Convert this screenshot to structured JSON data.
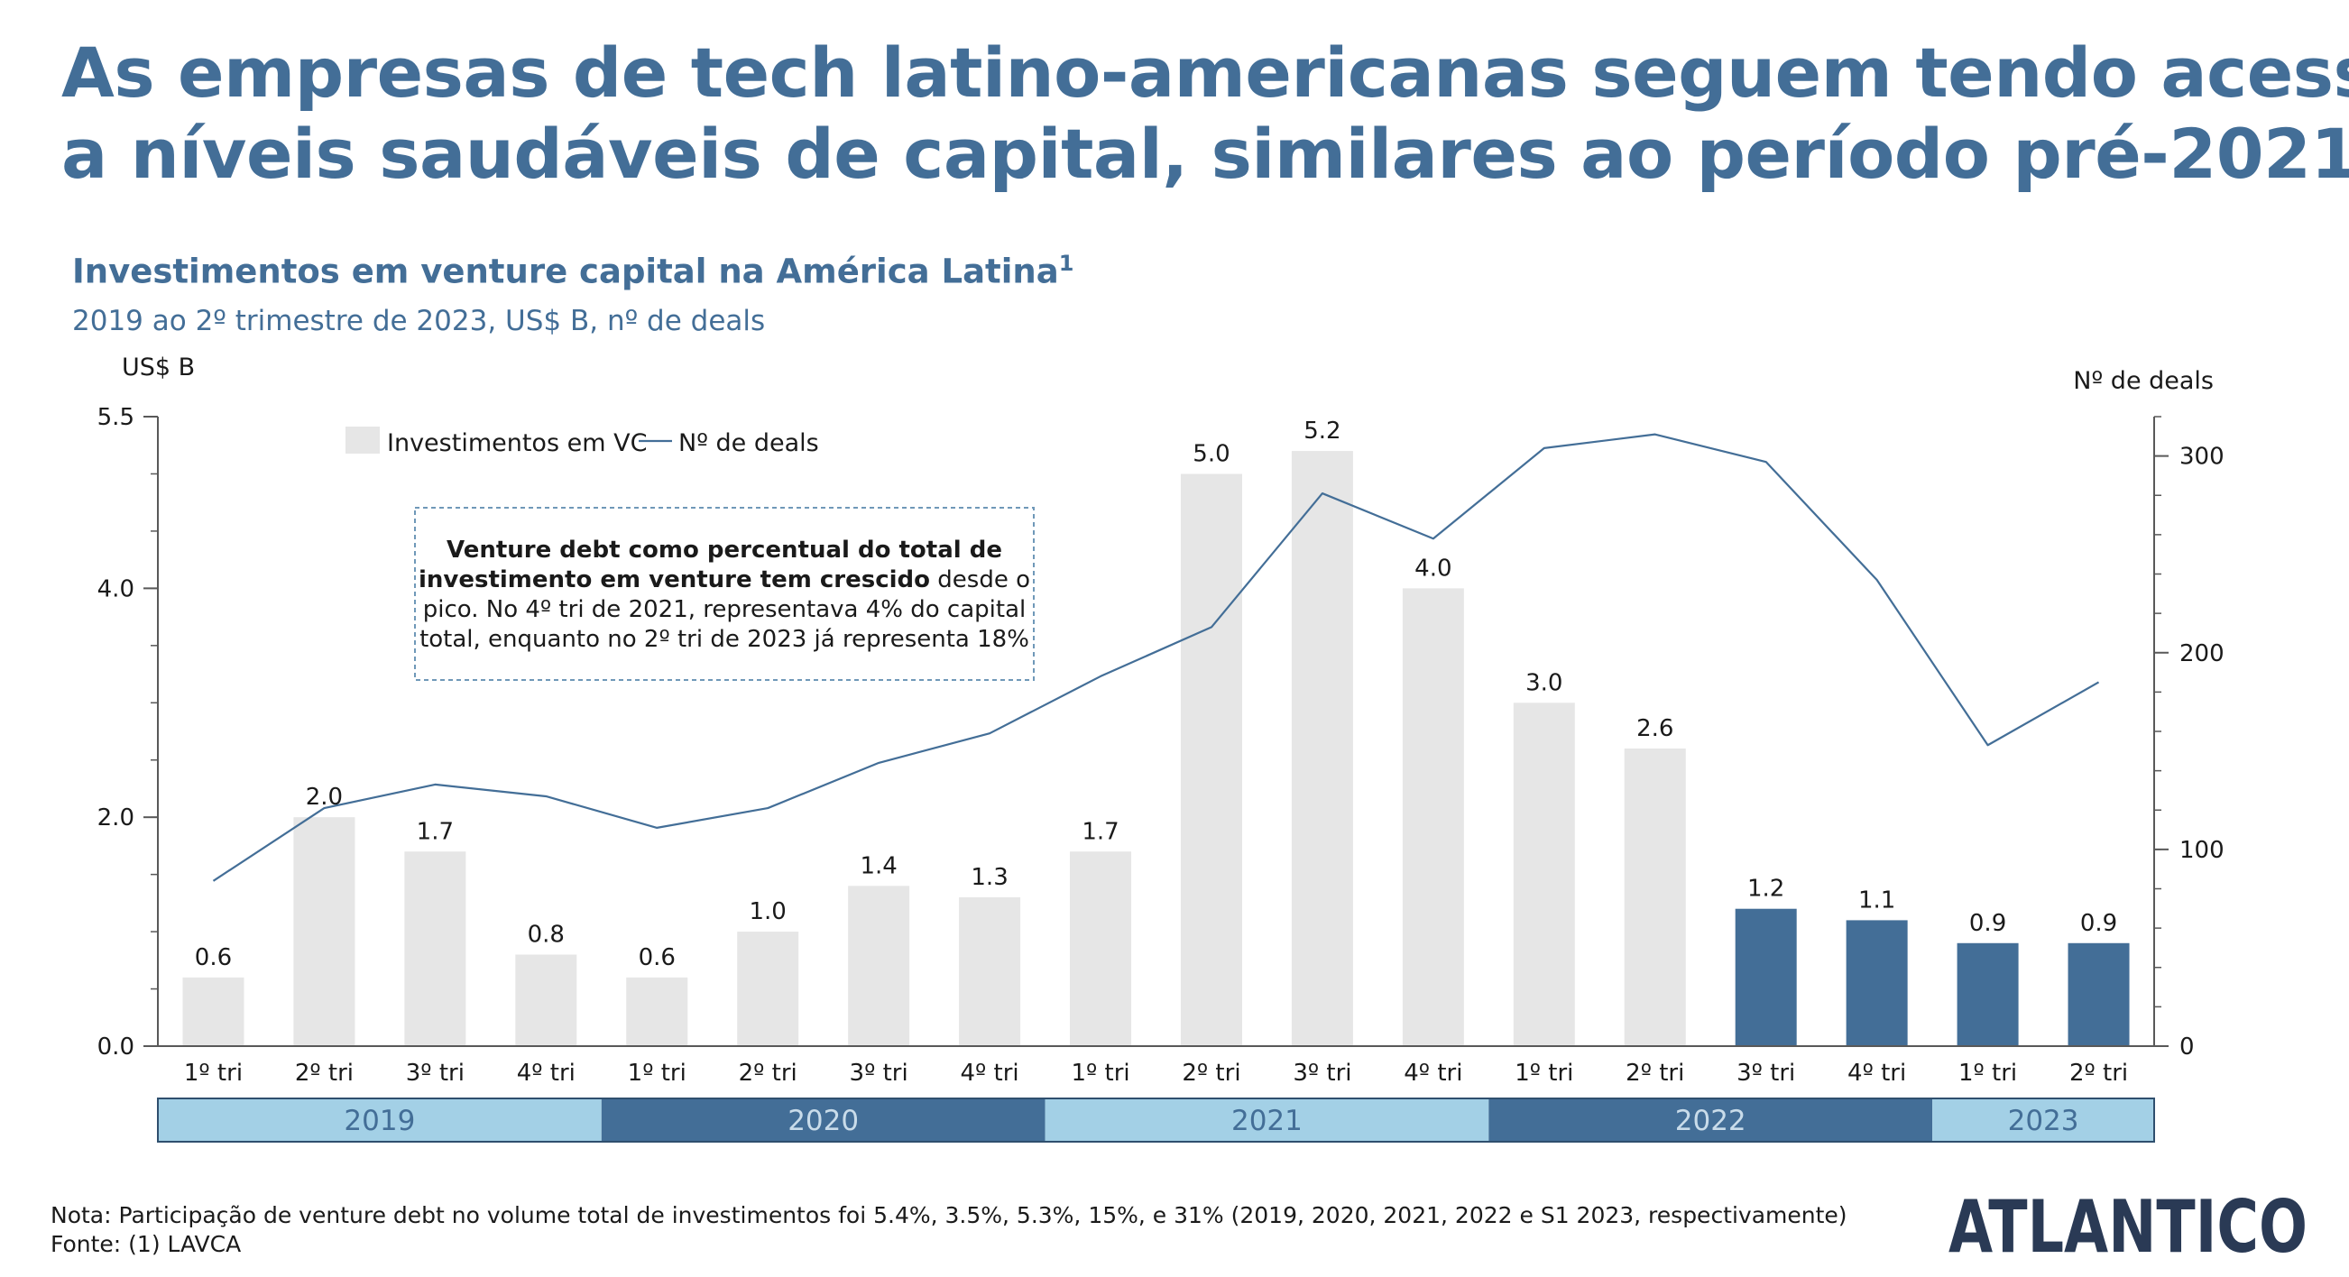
{
  "headline": {
    "line1": "As empresas de tech latino-americanas seguem tendo acesso",
    "line2": "a níveis saudáveis de capital, similares ao período pré-2021"
  },
  "subtitle": {
    "text": "Investimentos em venture capital na América Latina",
    "footnote_marker": "1",
    "detail": "2019 ao 2º trimestre de 2023, US$ B, nº de deals"
  },
  "callout": {
    "bold_part": "Venture debt como percentual do total de investimento em venture tem crescido",
    "regular_part": " desde o pico. No 4º tri de 2021, representava 4% do capital total, enquanto no 2º tri de 2023 já representa 18%",
    "lines": [
      {
        "bold": "Venture debt como percentual do total de",
        "regular": ""
      },
      {
        "bold": "investimento em venture tem crescido",
        "regular": " desde o"
      },
      {
        "bold": "",
        "regular": "pico. No 4º tri de 2021, representava 4% do capital"
      },
      {
        "bold": "",
        "regular": "total, enquanto no 2º tri de 2023 já representa 18%"
      }
    ]
  },
  "notes": {
    "nota": "Nota: Participação de venture debt no volume total de investimentos foi 5.4%, 3.5%, 5.3%, 15%, e 31% (2019, 2020, 2021, 2022 e S1 2023, respectivamente)",
    "fonte": "Fonte: (1) LAVCA"
  },
  "logo": {
    "text": "ATLANTICO",
    "icon": "atlantico-logo"
  },
  "colors": {
    "title": "#436e97",
    "bar_light": "#e6e6e6",
    "bar_dark": "#436e97",
    "line": "#436e97",
    "year_light": "#a3d0e6",
    "year_dark": "#436e97",
    "axis": "#595959"
  },
  "chart_data": {
    "type": "bar",
    "categories": [
      "1º tri",
      "2º tri",
      "3º tri",
      "4º tri",
      "1º tri",
      "2º tri",
      "3º tri",
      "4º tri",
      "1º tri",
      "2º tri",
      "3º tri",
      "4º tri",
      "1º tri",
      "2º tri",
      "3º tri",
      "4º tri",
      "1º tri",
      "2º tri"
    ],
    "years": [
      {
        "label": "2019",
        "count": 4,
        "style": "light"
      },
      {
        "label": "2020",
        "count": 4,
        "style": "dark"
      },
      {
        "label": "2021",
        "count": 4,
        "style": "light"
      },
      {
        "label": "2022",
        "count": 4,
        "style": "dark"
      },
      {
        "label": "2023",
        "count": 2,
        "style": "light"
      }
    ],
    "series": [
      {
        "name": "Investimentos em VC",
        "kind": "bar",
        "axis": "left",
        "values": [
          0.6,
          2.0,
          1.7,
          0.8,
          0.6,
          1.0,
          1.4,
          1.3,
          1.7,
          5.0,
          5.2,
          4.0,
          3.0,
          2.6,
          1.2,
          1.1,
          0.9,
          0.9
        ],
        "value_labels": [
          "0.6",
          "2.0",
          "1.7",
          "0.8",
          "0.6",
          "1.0",
          "1.4",
          "1.3",
          "1.7",
          "5.0",
          "5.2",
          "4.0",
          "3.0",
          "2.6",
          "1.2",
          "1.1",
          "0.9",
          "0.9"
        ],
        "highlight_from_index": 14
      },
      {
        "name": "Nº de deals",
        "kind": "line",
        "axis": "right",
        "values": [
          84,
          121,
          133,
          127,
          111,
          121,
          144,
          159,
          188,
          213,
          281,
          258,
          304,
          311,
          297,
          237,
          153,
          185
        ]
      }
    ],
    "y_left": {
      "label": "US$ B",
      "min": 0,
      "max": 5.5,
      "ticks": [
        0,
        2,
        4,
        5.5
      ],
      "tick_labels": [
        "0.0",
        "2.0",
        "4.0",
        "5.5"
      ],
      "minor_step": 0.5
    },
    "y_right": {
      "label": "Nº de deals",
      "min": 0,
      "max": 320,
      "ticks": [
        0,
        100,
        200,
        300
      ],
      "tick_labels": [
        "0",
        "100",
        "200",
        "300"
      ],
      "minor_step": 20
    },
    "legend": {
      "placement": "top-left",
      "bar_label": "Investimentos em VC",
      "line_label": "Nº de deals"
    },
    "grid": false
  }
}
